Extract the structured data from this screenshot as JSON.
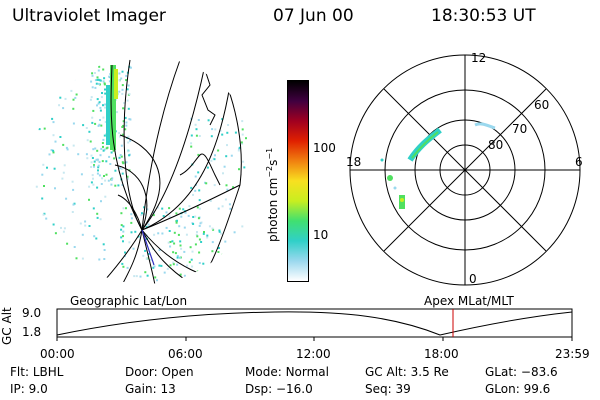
{
  "header": {
    "title": "Ultraviolet Imager",
    "date": "07 Jun 00",
    "time": "18:30:53 UT"
  },
  "colorbar": {
    "label_base": "photon cm",
    "label_exp1": "−2",
    "label_mid": "s",
    "label_exp2": "−1",
    "tick_high": "100",
    "tick_low": "10",
    "stops": [
      "#ffffff",
      "#9ad8ee",
      "#30d0c8",
      "#40e070",
      "#c8ee20",
      "#f8e020",
      "#f08010",
      "#e02000",
      "#a00020",
      "#400040",
      "#000000"
    ]
  },
  "polar": {
    "label_top": "12",
    "label_bottom": "0",
    "label_left": "18",
    "label_right": "6",
    "ring_60": "60",
    "ring_70": "70",
    "ring_80": "80"
  },
  "timeline": {
    "left_label": "Geographic Lat/Lon",
    "right_label": "Apex MLat/MLT",
    "axis_label": "GC Alt",
    "y_high": "9.0",
    "y_low": "1.8",
    "ticks": [
      "00:00",
      "06:00",
      "12:00",
      "18:00",
      "23:59"
    ],
    "marker_color": "#cc0000"
  },
  "info": {
    "row1": [
      {
        "key": "Flt:",
        "value": "LBHL"
      },
      {
        "key": "Door:",
        "value": "Open"
      },
      {
        "key": "Mode:",
        "value": "Normal"
      },
      {
        "key": "GC Alt:",
        "value": "3.5 Re"
      },
      {
        "key": "GLat:",
        "value": "−83.6"
      }
    ],
    "row2": [
      {
        "key": "IP:",
        "value": "9.0"
      },
      {
        "key": "Gain:",
        "value": "13"
      },
      {
        "key": "Dsp:",
        "value": "−16.0"
      },
      {
        "key": "Seq:",
        "value": "39"
      },
      {
        "key": "GLon:",
        "value": "99.6"
      }
    ]
  }
}
